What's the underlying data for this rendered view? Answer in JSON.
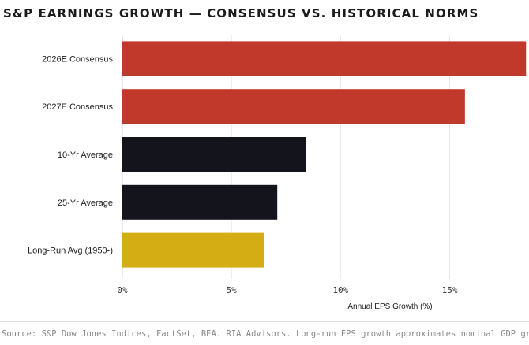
{
  "title": "S&P EARNINGS GROWTH — CONSENSUS VS. HISTORICAL NORMS",
  "source": "Source: S&P Dow Jones Indices, FactSet, BEA. RIA Advisors. Long-run EPS growth approximates nominal GDP growth.",
  "colors": {
    "consensus": "#c0392b",
    "average": "#14141c",
    "longrun": "#d4ac14",
    "grid": "#e6e6e6"
  },
  "chart_data": {
    "type": "bar",
    "orientation": "horizontal",
    "categories": [
      "2026E Consensus",
      "2027E Consensus",
      "10-Yr Average",
      "25-Yr Average",
      "Long-Run Avg (1950-)"
    ],
    "values": [
      18.5,
      15.7,
      8.4,
      7.1,
      6.5
    ],
    "bar_colors": [
      "#c0392b",
      "#c0392b",
      "#14141c",
      "#14141c",
      "#d4ac14"
    ],
    "xlabel": "Annual EPS Growth (%)",
    "ylabel": "",
    "xlim": [
      0,
      18.6
    ],
    "xticks": [
      0,
      5,
      10,
      15
    ],
    "xtick_labels": [
      "0%",
      "5%",
      "10%",
      "15%"
    ],
    "grid": true
  }
}
